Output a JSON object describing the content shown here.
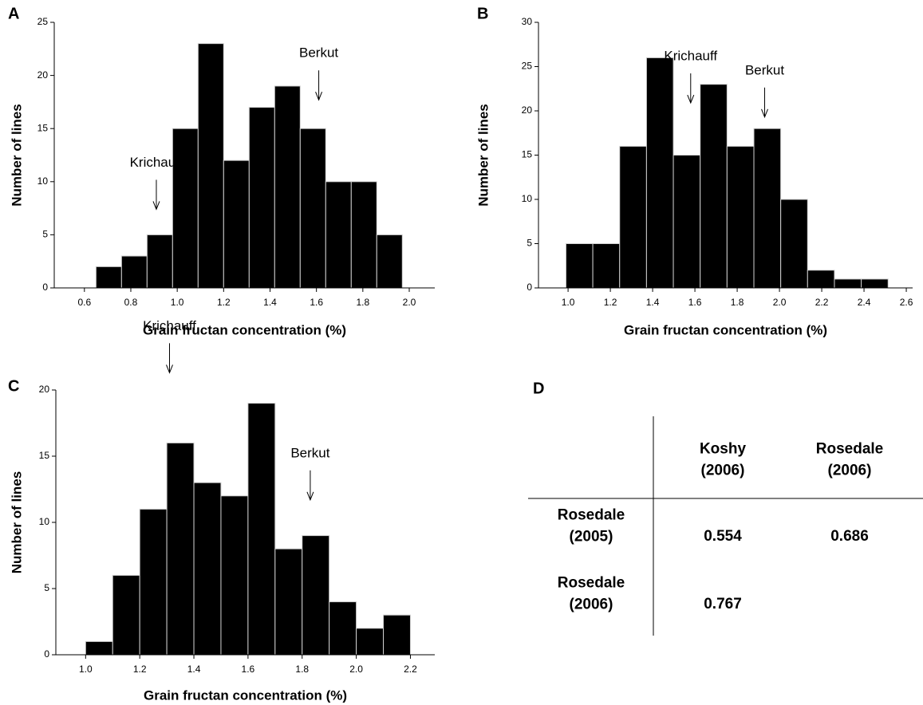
{
  "chart_data": [
    {
      "type": "histogram",
      "panel": "A",
      "xlabel": "Grain fructan concentration (%)",
      "ylabel": "Number of lines",
      "bins": [
        0.65,
        0.76,
        0.87,
        0.98,
        1.09,
        1.2,
        1.31,
        1.42,
        1.53,
        1.64,
        1.75,
        1.86,
        1.97
      ],
      "counts": [
        2,
        3,
        5,
        15,
        23,
        12,
        17,
        19,
        15,
        10,
        10,
        5
      ],
      "color": "#000000",
      "xlim": [
        0.47,
        2.11
      ],
      "xticks": [
        0.6,
        0.8,
        {
          "value": 1,
          "label": "1.0"
        },
        1.2,
        1.4,
        1.6,
        1.8,
        {
          "value": 2,
          "label": "2.0"
        }
      ],
      "ylim": [
        0,
        25
      ],
      "yticks": [
        0,
        5,
        10,
        15,
        20,
        25
      ],
      "annotations": [
        {
          "text": "Krichauff",
          "x": 0.91,
          "y": 7.4
        },
        {
          "text": "Berkut",
          "x": 1.61,
          "y": 17.7
        }
      ]
    },
    {
      "type": "histogram",
      "panel": "B",
      "xlabel": "Grain fructan concentration (%)",
      "ylabel": "Number of lines",
      "bins": [
        0.99,
        1.117,
        1.244,
        1.371,
        1.498,
        1.625,
        1.752,
        1.879,
        2.006,
        2.133,
        2.26,
        2.387,
        2.514
      ],
      "counts": [
        5,
        5,
        16,
        26,
        15,
        23,
        16,
        18,
        10,
        2,
        1,
        1
      ],
      "color": "#000000",
      "xlim": [
        0.86,
        2.63
      ],
      "xticks": [
        {
          "value": 1,
          "label": "1.0"
        },
        1.2,
        1.4,
        1.6,
        1.8,
        {
          "value": 2,
          "label": "2.0"
        },
        2.2,
        2.4,
        2.6
      ],
      "ylim": [
        0,
        30
      ],
      "yticks": [
        0,
        5,
        10,
        15,
        20,
        25,
        30
      ],
      "annotations": [
        {
          "text": "Krichauff",
          "x": 1.58,
          "y": 20.9
        },
        {
          "text": "Berkut",
          "x": 1.93,
          "y": 19.3
        }
      ]
    },
    {
      "type": "histogram",
      "panel": "C",
      "xlabel": "Grain fructan concentration (%)",
      "ylabel": "Number of lines",
      "bins": [
        1.0,
        1.1,
        1.2,
        1.3,
        1.4,
        1.5,
        1.6,
        1.7,
        1.8,
        1.9,
        2.0,
        2.1,
        2.2
      ],
      "counts": [
        1,
        6,
        11,
        16,
        13,
        12,
        19,
        8,
        9,
        4,
        2,
        3
      ],
      "color": "#000000",
      "xlim": [
        0.89,
        2.29
      ],
      "xticks": [
        {
          "value": 1,
          "label": "1.0"
        },
        1.2,
        1.4,
        1.6,
        1.8,
        {
          "value": 2,
          "label": "2.0"
        },
        2.2
      ],
      "ylim": [
        0,
        20
      ],
      "yticks": [
        0,
        5,
        10,
        15,
        20
      ],
      "annotations": [
        {
          "text": "Krichauff",
          "x": 1.31,
          "y": 21.3
        },
        {
          "text": "Berkut",
          "x": 1.83,
          "y": 11.7
        }
      ]
    }
  ],
  "table": {
    "panel": "D",
    "columns": [
      "Koshy (2006)",
      "Rosedale (2006)"
    ],
    "rows": [
      {
        "label": "Rosedale (2005)",
        "values": [
          0.554,
          0.686
        ]
      },
      {
        "label": "Rosedale (2006)",
        "values": [
          0.767
        ]
      }
    ]
  }
}
